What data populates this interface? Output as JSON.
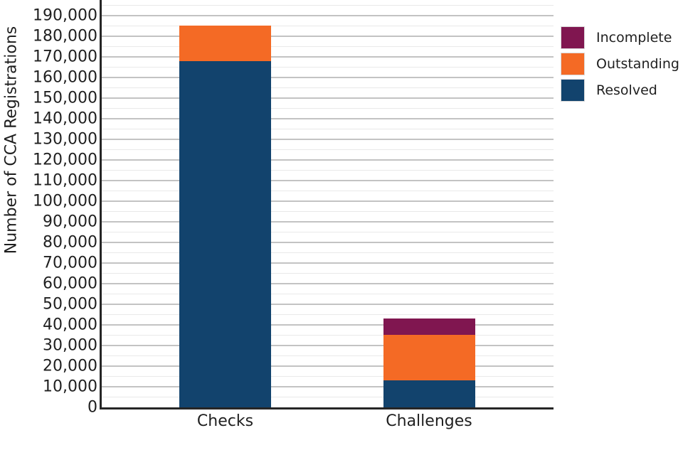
{
  "chart_data": {
    "type": "bar",
    "stacked": true,
    "title": "",
    "xlabel": "",
    "ylabel": "Number of CCA Registrations",
    "categories": [
      "Checks",
      "Challenges"
    ],
    "series": [
      {
        "name": "Resolved",
        "color": "#12436D",
        "values": [
          168000,
          13000
        ]
      },
      {
        "name": "Outstanding",
        "color": "#F46A25",
        "values": [
          17000,
          22000
        ]
      },
      {
        "name": "Incomplete",
        "color": "#801650",
        "values": [
          0,
          8000
        ]
      }
    ],
    "totals": [
      185000,
      43000
    ],
    "ylim": [
      0,
      197500
    ],
    "ytick_step": 10000,
    "yminor_step": 5000,
    "ytick_labels": [
      "0",
      "10,000",
      "20,000",
      "30,000",
      "40,000",
      "50,000",
      "60,000",
      "70,000",
      "80,000",
      "90,000",
      "100,000",
      "110,000",
      "120,000",
      "130,000",
      "140,000",
      "150,000",
      "160,000",
      "170,000",
      "180,000",
      "190,000"
    ],
    "grid": "horizontal",
    "legend_position": "upper right"
  },
  "legend": {
    "items": [
      {
        "label": "Incomplete",
        "color": "#801650"
      },
      {
        "label": "Outstanding",
        "color": "#F46A25"
      },
      {
        "label": "Resolved",
        "color": "#12436D"
      }
    ]
  },
  "colors": {
    "background": "#ffffff",
    "spine": "#262626",
    "grid_major": "#c3c3c3",
    "grid_minor": "#e9e9e9",
    "text": "#1f1f1f"
  }
}
